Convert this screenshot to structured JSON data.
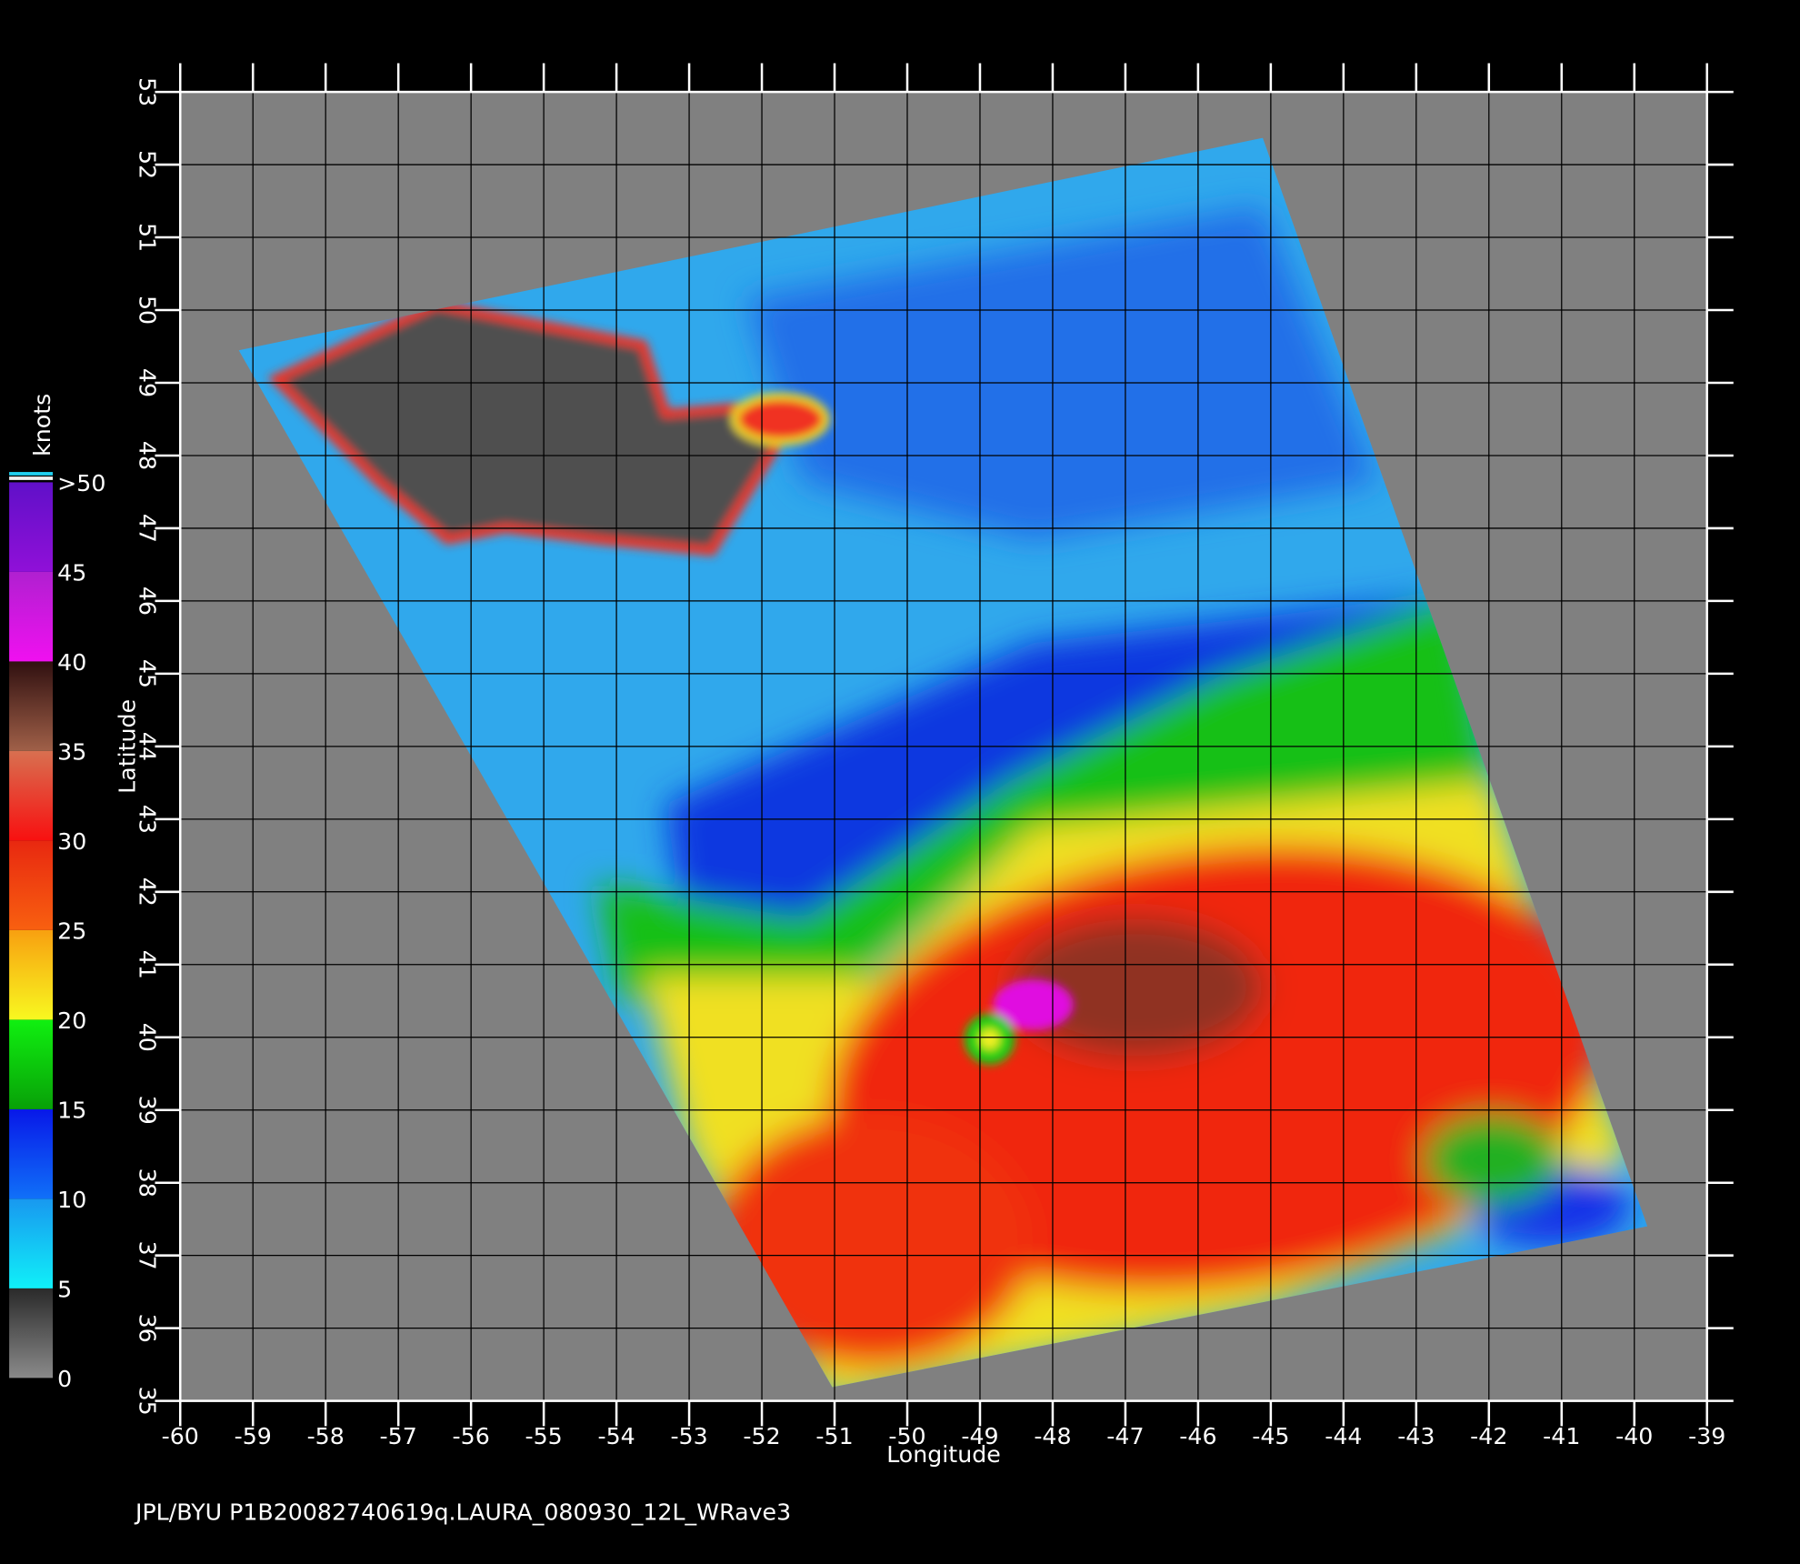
{
  "map": {
    "footer": "JPL/BYU  P1B20082740619q.LAURA_080930_12L_WRave3",
    "x_label": "Longitude",
    "y_label": "Latitude",
    "xlim": [
      -60,
      -39
    ],
    "ylim": [
      35,
      53
    ],
    "xticks": [
      -60,
      -59,
      -58,
      -57,
      -56,
      -55,
      -54,
      -53,
      -52,
      -51,
      -50,
      -49,
      -48,
      -47,
      -46,
      -45,
      -44,
      -43,
      -42,
      -41,
      -40,
      -39
    ],
    "yticks": [
      35,
      36,
      37,
      38,
      39,
      40,
      41,
      42,
      43,
      44,
      45,
      46,
      47,
      48,
      49,
      50,
      51,
      52,
      53
    ],
    "colorbar": {
      "title": "knots",
      "lim": [
        0,
        50
      ],
      "ticks": [
        0,
        5,
        10,
        15,
        20,
        25,
        30,
        35,
        40,
        45,
        {
          "value": 50,
          "label": ">50"
        }
      ],
      "colors": [
        [
          "#8a8a8a",
          "#2a2a2a"
        ],
        [
          "#10f0f8",
          "#1898f0"
        ],
        [
          "#1070f8",
          "#0818e8"
        ],
        [
          "#08a008",
          "#10f010"
        ],
        [
          "#f8f820",
          "#f8a010"
        ],
        [
          "#f86010",
          "#e82810"
        ],
        [
          "#f81010",
          "#d87050"
        ],
        [
          "#a06048",
          "#301010"
        ],
        [
          "#f010f0",
          "#b020d0"
        ],
        [
          "#9010d8",
          "#6010c8"
        ]
      ]
    }
  }
}
